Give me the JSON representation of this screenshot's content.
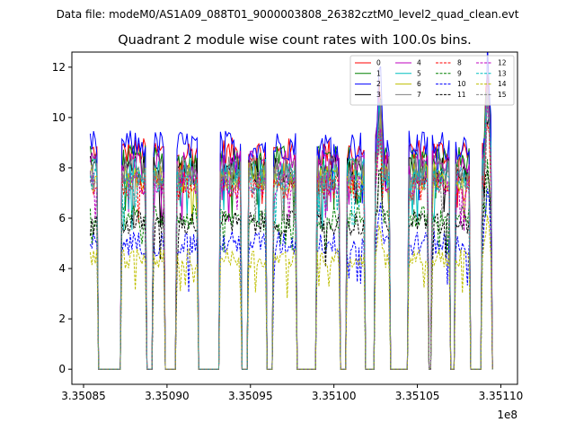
{
  "chart_data": {
    "type": "line",
    "suptitle": "Data file: modeM0/AS1A09_088T01_9000003808_26382cztM0_level2_quad_clean.evt",
    "title": "Quadrant 2 module wise count rates with 100.0s bins.",
    "xlabel": "",
    "ylabel": "",
    "x_offset_label": "1e8",
    "xlim": [
      335084300,
      335111000
    ],
    "ylim": [
      -0.6,
      12.6
    ],
    "x_ticks": [
      335085000,
      335090000,
      335095000,
      335100000,
      335105000,
      335110000
    ],
    "x_tick_labels": [
      "3.35085",
      "3.35090",
      "3.35095",
      "3.35100",
      "3.35105",
      "3.35110"
    ],
    "y_ticks": [
      0,
      2,
      4,
      6,
      8,
      10,
      12
    ],
    "y_tick_labels": [
      "0",
      "2",
      "4",
      "6",
      "8",
      "10",
      "12"
    ],
    "legend_placement": "top-right",
    "legend_ncol": 4,
    "observation_windows": [
      [
        335085400,
        335085850
      ],
      [
        335087300,
        335088750
      ],
      [
        335089200,
        335089850
      ],
      [
        335090600,
        335091800
      ],
      [
        335093200,
        335094450
      ],
      [
        335094900,
        335095950
      ],
      [
        335096350,
        335097700
      ],
      [
        335099000,
        335100350
      ],
      [
        335100800,
        335101800
      ],
      [
        335102500,
        335103300
      ],
      [
        335104500,
        335105600
      ],
      [
        335105900,
        335106950
      ],
      [
        335107300,
        335108100
      ],
      [
        335108900,
        335109400
      ]
    ],
    "peaks": [
      {
        "x": 335102750,
        "amplitude": 2.6
      },
      {
        "x": 335109200,
        "amplitude": 3.2
      }
    ],
    "series": [
      {
        "name": "0",
        "color": "#ff0000",
        "style": "solid",
        "level": 8.6,
        "noise": 0.6
      },
      {
        "name": "1",
        "color": "#008000",
        "style": "solid",
        "level": 8.3,
        "noise": 0.6
      },
      {
        "name": "2",
        "color": "#0000ff",
        "style": "solid",
        "level": 8.9,
        "noise": 0.6
      },
      {
        "name": "3",
        "color": "#000000",
        "style": "solid",
        "level": 7.9,
        "noise": 0.6
      },
      {
        "name": "4",
        "color": "#bf00bf",
        "style": "solid",
        "level": 8.1,
        "noise": 0.6
      },
      {
        "name": "5",
        "color": "#00bfbf",
        "style": "solid",
        "level": 7.8,
        "noise": 0.6
      },
      {
        "name": "6",
        "color": "#bfbf00",
        "style": "solid",
        "level": 7.6,
        "noise": 0.6
      },
      {
        "name": "7",
        "color": "#808080",
        "style": "solid",
        "level": 7.9,
        "noise": 0.6
      },
      {
        "name": "8",
        "color": "#ff0000",
        "style": "dashed",
        "level": 7.2,
        "noise": 0.5
      },
      {
        "name": "9",
        "color": "#008000",
        "style": "dashed",
        "level": 6.0,
        "noise": 0.5
      },
      {
        "name": "10",
        "color": "#0000ff",
        "style": "dashed",
        "level": 5.0,
        "noise": 0.5
      },
      {
        "name": "11",
        "color": "#000000",
        "style": "dashed",
        "level": 5.8,
        "noise": 0.5
      },
      {
        "name": "12",
        "color": "#bf00bf",
        "style": "dashed",
        "level": 7.4,
        "noise": 0.5
      },
      {
        "name": "13",
        "color": "#00bfbf",
        "style": "dashed",
        "level": 7.5,
        "noise": 0.5
      },
      {
        "name": "14",
        "color": "#bfbf00",
        "style": "dashed",
        "level": 4.4,
        "noise": 0.4
      },
      {
        "name": "15",
        "color": "#808080",
        "style": "dashed",
        "level": 7.6,
        "noise": 0.5
      }
    ]
  }
}
